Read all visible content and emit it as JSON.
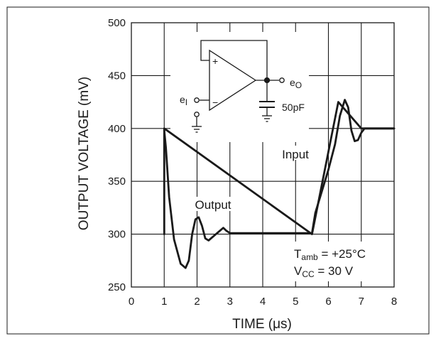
{
  "chart_data": {
    "type": "line",
    "title": "",
    "xlabel": "TIME (μs)",
    "ylabel": "OUTPUT VOLTAGE (mV)",
    "xlim": [
      0,
      8
    ],
    "ylim": [
      250,
      500
    ],
    "xticks": [
      "0",
      "1",
      "2",
      "3",
      "4",
      "5",
      "6",
      "7",
      "8"
    ],
    "yticks": [
      "250",
      "300",
      "350",
      "400",
      "450",
      "500"
    ],
    "grid": true,
    "series": [
      {
        "name": "Input",
        "x": [
          1.0,
          1.0,
          5.5,
          6.3,
          7.0,
          8.0
        ],
        "y": [
          300,
          400,
          300,
          425,
          400,
          400
        ]
      },
      {
        "name": "Output",
        "x": [
          1.0,
          1.05,
          1.15,
          1.3,
          1.5,
          1.65,
          1.75,
          1.85,
          1.95,
          2.05,
          2.15,
          2.25,
          2.35,
          2.5,
          2.65,
          2.8,
          2.9,
          3.0,
          3.3,
          4.0,
          5.0,
          5.5,
          5.6,
          6.0,
          6.2,
          6.35,
          6.5,
          6.6,
          6.7,
          6.8,
          6.9,
          7.0,
          7.1,
          7.5,
          8.0
        ],
        "y": [
          398,
          382,
          335,
          295,
          272,
          268,
          275,
          300,
          314,
          316,
          308,
          296,
          294,
          298,
          302,
          306,
          303,
          301,
          301,
          301,
          301,
          301,
          320,
          361,
          385,
          412,
          427,
          420,
          398,
          388,
          389,
          396,
          400,
          400,
          400
        ]
      }
    ],
    "annotations": [
      {
        "text": "Input",
        "x": 5.5,
        "y": 357
      },
      {
        "text": "Output",
        "x": 2.55,
        "y": 328
      }
    ],
    "conditions": {
      "tamb_symbol": "T",
      "tamb_sub": "amb",
      "tamb_value": " = +25°C",
      "vcc_symbol": "V",
      "vcc_sub": "CC",
      "vcc_value": " = 30 V"
    },
    "circuit": {
      "plus": "+",
      "minus": "−",
      "input_symbol": "e",
      "input_sub": "I",
      "output_symbol": "e",
      "output_sub": "O",
      "capacitor": "50pF"
    }
  }
}
